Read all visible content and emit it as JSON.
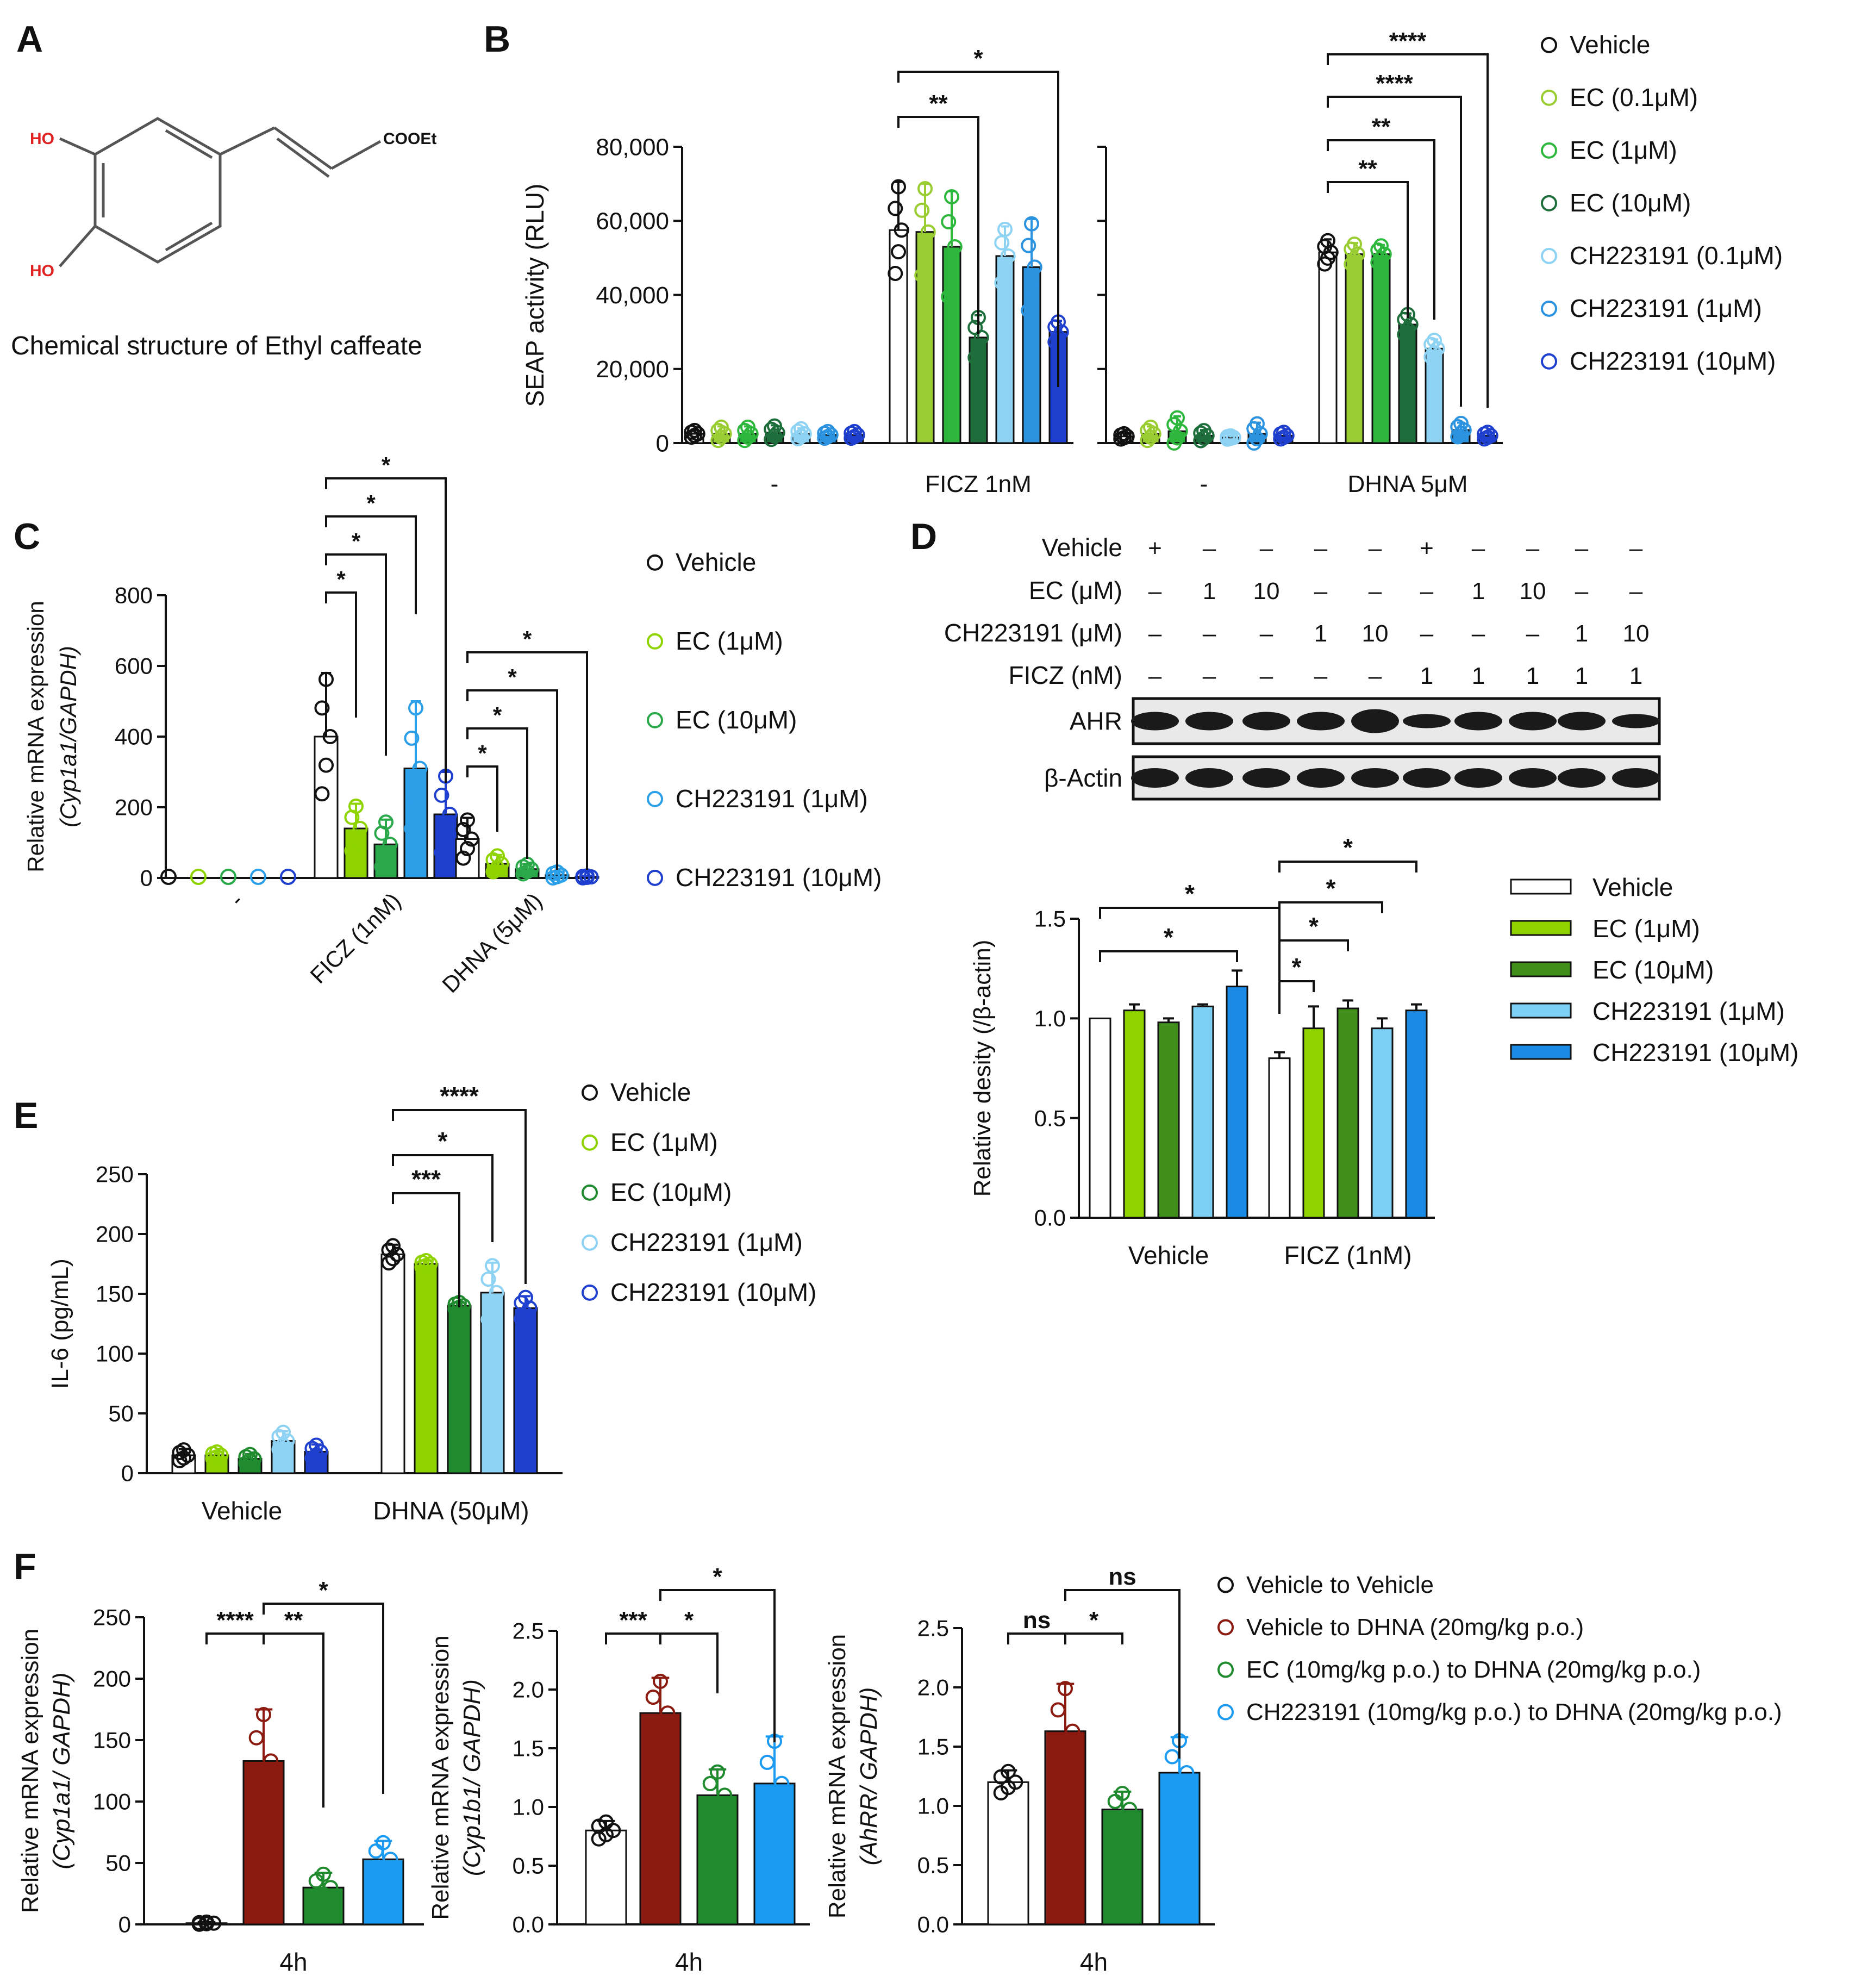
{
  "panels": {
    "A": {
      "letter": "A",
      "caption": "Chemical structure of Ethyl caffeate",
      "atom_labels": {
        "oh_top": "HO",
        "oh_bottom": "HO",
        "ester": "COOEt"
      }
    },
    "B": {
      "letter": "B"
    },
    "C": {
      "letter": "C"
    },
    "D": {
      "letter": "D",
      "blot": {
        "row_labels": [
          "Vehicle",
          "EC (μM)",
          "CH223191 (μM)",
          "FICZ (nM)"
        ],
        "rows": [
          [
            "+",
            "–",
            "–",
            "–",
            "–",
            "+",
            "–",
            "–",
            "–",
            "–"
          ],
          [
            "–",
            "1",
            "10",
            "–",
            "–",
            "–",
            "1",
            "10",
            "–",
            "–"
          ],
          [
            "–",
            "–",
            "–",
            "1",
            "10",
            "–",
            "–",
            "–",
            "1",
            "10"
          ],
          [
            "–",
            "–",
            "–",
            "–",
            "–",
            "1",
            "1",
            "1",
            "1",
            "1"
          ]
        ],
        "bands": [
          "AHR",
          "β-Actin"
        ]
      }
    },
    "E": {
      "letter": "E"
    },
    "F": {
      "letter": "F"
    }
  },
  "chart_data": [
    {
      "id": "B",
      "type": "bar",
      "title": "",
      "xlabel": "",
      "ylabel": "SEAP activity (RLU)",
      "ylim": [
        0,
        80000
      ],
      "yticks": [
        0,
        20000,
        40000,
        60000,
        80000
      ],
      "ytick_labels": [
        "0",
        "20,000",
        "40,000",
        "60,000",
        "80,000"
      ],
      "subplots": [
        {
          "categories": [
            "-",
            "FICZ 1nM"
          ]
        },
        {
          "categories": [
            "-",
            "DHNA 5μM"
          ]
        }
      ],
      "series_names": [
        "Vehicle",
        "EC (0.1μM)",
        "EC (1μM)",
        "EC (10μM)",
        "CH223191 (0.1μM)",
        "CH223191 (1μM)",
        "CH223191 (10μM)"
      ],
      "series_colors": [
        "#ffffff",
        "#9acd32",
        "#2db83d",
        "#1e6e3c",
        "#8fd3f4",
        "#2b93e0",
        "#1f3fcf"
      ],
      "values_left": [
        [
          2500,
          2500,
          2500,
          2800,
          2500,
          2200,
          2200
        ],
        [
          57500,
          57000,
          53000,
          28500,
          50500,
          47500,
          30000
        ]
      ],
      "errors_left": [
        [
          1000,
          2000,
          2000,
          2000,
          1500,
          1000,
          1000
        ],
        [
          13000,
          13000,
          15000,
          6000,
          8000,
          13000,
          3000
        ]
      ],
      "values_right": [
        [
          1800,
          2500,
          3200,
          2000,
          1500,
          2500,
          2000
        ],
        [
          51500,
          51000,
          51000,
          32000,
          25500,
          3500,
          2000
        ]
      ],
      "errors_right": [
        [
          800,
          2000,
          4000,
          1500,
          500,
          3000,
          1000
        ],
        [
          3500,
          3000,
          2500,
          3000,
          2500,
          2000,
          1000
        ]
      ],
      "legend": [
        "Vehicle",
        "EC (0.1μM)",
        "EC (1μM)",
        "EC (10μM)",
        "CH223191 (0.1μM)",
        "CH223191 (1μM)",
        "CH223191 (10μM)"
      ],
      "significance": [
        {
          "group": "FICZ 1nM",
          "from": "Vehicle",
          "to": "EC (10μM)",
          "label": "**"
        },
        {
          "group": "FICZ 1nM",
          "from": "Vehicle",
          "to": "CH223191 (10μM)",
          "label": "*"
        },
        {
          "group": "DHNA 5μM",
          "from": "Vehicle",
          "to": "EC (10μM)",
          "label": "**"
        },
        {
          "group": "DHNA 5μM",
          "from": "Vehicle",
          "to": "CH223191 (0.1μM)",
          "label": "**"
        },
        {
          "group": "DHNA 5μM",
          "from": "Vehicle",
          "to": "CH223191 (1μM)",
          "label": "****"
        },
        {
          "group": "DHNA 5μM",
          "from": "Vehicle",
          "to": "CH223191 (10μM)",
          "label": "****"
        }
      ]
    },
    {
      "id": "C",
      "type": "bar",
      "ylabel_line1": "Relative mRNA expression",
      "ylabel_line2": "(Cyp1a1/GAPDH)",
      "ylim": [
        0,
        800
      ],
      "yticks": [
        0,
        200,
        400,
        600,
        800
      ],
      "categories": [
        "-",
        "FICZ (1nM)",
        "DHNA (5μM)"
      ],
      "series_names": [
        "Vehicle",
        "EC (1μM)",
        "EC (10μM)",
        "CH223191 (1μM)",
        "CH223191 (10μM)"
      ],
      "series_colors": [
        "#ffffff",
        "#8fd400",
        "#2aa84a",
        "#2b9fe8",
        "#1f3fcf"
      ],
      "values": [
        [
          2,
          2,
          2,
          2,
          2
        ],
        [
          400,
          140,
          95,
          310,
          180
        ],
        [
          110,
          40,
          25,
          8,
          3
        ]
      ],
      "errors": [
        [
          1,
          1,
          1,
          1,
          1
        ],
        [
          180,
          70,
          70,
          190,
          120
        ],
        [
          60,
          25,
          15,
          10,
          3
        ]
      ],
      "legend": [
        "Vehicle",
        "EC (1μM)",
        "EC (10μM)",
        "CH223191 (1μM)",
        "CH223191 (10μM)"
      ],
      "significance": [
        {
          "group": "FICZ (1nM)",
          "from": "Vehicle",
          "to": "EC (1μM)",
          "label": "*"
        },
        {
          "group": "FICZ (1nM)",
          "from": "Vehicle",
          "to": "EC (10μM)",
          "label": "*"
        },
        {
          "group": "FICZ (1nM)",
          "from": "Vehicle",
          "to": "CH223191 (1μM)",
          "label": "*"
        },
        {
          "group": "FICZ (1nM)",
          "from": "Vehicle",
          "to": "CH223191 (10μM)",
          "label": "*"
        },
        {
          "group": "DHNA (5μM)",
          "from": "Vehicle",
          "to": "EC (1μM)",
          "label": "*"
        },
        {
          "group": "DHNA (5μM)",
          "from": "Vehicle",
          "to": "EC (10μM)",
          "label": "*"
        },
        {
          "group": "DHNA (5μM)",
          "from": "Vehicle",
          "to": "CH223191 (1μM)",
          "label": "*"
        },
        {
          "group": "DHNA (5μM)",
          "from": "Vehicle",
          "to": "CH223191 (10μM)",
          "label": "*"
        }
      ]
    },
    {
      "id": "D",
      "type": "bar",
      "ylabel": "Relative desity (/β-actin)",
      "ylim": [
        0,
        1.5
      ],
      "yticks": [
        0,
        0.5,
        1.0,
        1.5
      ],
      "ytick_labels": [
        "0.0",
        "0.5",
        "1.0",
        "1.5"
      ],
      "categories": [
        "Vehicle",
        "FICZ (1nM)"
      ],
      "series_names": [
        "Vehicle",
        "EC (1μM)",
        "EC (10μM)",
        "CH223191 (1μM)",
        "CH223191 (10μM)"
      ],
      "series_colors": [
        "#ffffff",
        "#8fd400",
        "#3f8f1a",
        "#7cd0f4",
        "#1a8ae6"
      ],
      "values": [
        [
          1.0,
          1.04,
          0.98,
          1.06,
          1.16
        ],
        [
          0.8,
          0.95,
          1.05,
          0.95,
          1.04
        ]
      ],
      "errors": [
        [
          0,
          0.03,
          0.02,
          0.01,
          0.08
        ],
        [
          0.03,
          0.11,
          0.04,
          0.05,
          0.03
        ]
      ],
      "legend": [
        "Vehicle",
        "EC (1μM)",
        "EC (10μM)",
        "CH223191 (1μM)",
        "CH223191 (10μM)"
      ],
      "significance": [
        {
          "from": "Vehicle/Vehicle",
          "to": "Vehicle/CH223191 (10μM)",
          "label": "*"
        },
        {
          "from": "Vehicle/Vehicle",
          "to": "FICZ/Vehicle",
          "label": "*"
        },
        {
          "from": "FICZ/Vehicle",
          "to": "FICZ/EC (1μM)",
          "label": "*"
        },
        {
          "from": "FICZ/Vehicle",
          "to": "FICZ/EC (10μM)",
          "label": "*"
        },
        {
          "from": "FICZ/Vehicle",
          "to": "FICZ/CH223191 (1μM)",
          "label": "*"
        },
        {
          "from": "FICZ/Vehicle",
          "to": "FICZ/CH223191 (10μM)",
          "label": "*"
        }
      ]
    },
    {
      "id": "E",
      "type": "bar",
      "ylabel": "IL-6 (pg/mL)",
      "ylim": [
        0,
        250
      ],
      "yticks": [
        0,
        50,
        100,
        150,
        200,
        250
      ],
      "categories": [
        "Vehicle",
        "DHNA (50μM)"
      ],
      "series_names": [
        "Vehicle",
        "EC (1μM)",
        "EC (10μM)",
        "CH223191 (1μM)",
        "CH223191 (10μM)"
      ],
      "series_colors": [
        "#ffffff",
        "#8fd400",
        "#1f8a2e",
        "#8fd3f4",
        "#1f3fcf"
      ],
      "values": [
        [
          15,
          15,
          12,
          27,
          18
        ],
        [
          183,
          175,
          140,
          151,
          138
        ]
      ],
      "errors": [
        [
          5,
          3,
          4,
          8,
          6
        ],
        [
          8,
          3,
          3,
          25,
          10
        ]
      ],
      "legend": [
        "Vehicle",
        "EC (1μM)",
        "EC (10μM)",
        "CH223191 (1μM)",
        "CH223191 (10μM)"
      ],
      "significance": [
        {
          "from": "Vehicle",
          "to": "EC (10μM)",
          "label": "***"
        },
        {
          "from": "Vehicle",
          "to": "CH223191 (1μM)",
          "label": "*"
        },
        {
          "from": "Vehicle",
          "to": "CH223191 (10μM)",
          "label": "****"
        }
      ]
    },
    {
      "id": "F1",
      "type": "bar",
      "ylabel_line1": "Relative mRNA expression",
      "ylabel_line2": "(Cyp1a1/ GAPDH)",
      "xlabel": "4h",
      "ylim": [
        0,
        250
      ],
      "yticks": [
        0,
        50,
        100,
        150,
        200,
        250
      ],
      "series_names": [
        "Vehicle to Vehicle",
        "Vehicle to DHNA (20mg/kg p.o.)",
        "EC (10mg/kg p.o.) to DHNA (20mg/kg p.o.)",
        "CH223191 (10mg/kg p.o.) to DHNA (20mg/kg p.o.)"
      ],
      "series_colors": [
        "#ffffff",
        "#8b1a10",
        "#1f8a2e",
        "#1a9af0"
      ],
      "values": [
        1,
        133,
        30,
        53
      ],
      "errors": [
        1,
        42,
        12,
        15
      ],
      "significance": [
        {
          "from": 0,
          "to": 1,
          "label": "****"
        },
        {
          "from": 1,
          "to": 2,
          "label": "**"
        },
        {
          "from": 1,
          "to": 3,
          "label": "*"
        }
      ]
    },
    {
      "id": "F2",
      "type": "bar",
      "ylabel_line1": "Relative mRNA expression",
      "ylabel_line2": "(Cyp1b1/ GAPDH)",
      "xlabel": "4h",
      "ylim": [
        0,
        2.5
      ],
      "yticks": [
        0,
        0.5,
        1.0,
        1.5,
        2.0,
        2.5
      ],
      "ytick_labels": [
        "0.0",
        "0.5",
        "1.0",
        "1.5",
        "2.0",
        "2.5"
      ],
      "series_names": [
        "Vehicle to Vehicle",
        "Vehicle to DHNA (20mg/kg p.o.)",
        "EC (10mg/kg p.o.) to DHNA (20mg/kg p.o.)",
        "CH223191 (10mg/kg p.o.) to DHNA (20mg/kg p.o.)"
      ],
      "series_colors": [
        "#ffffff",
        "#8b1a10",
        "#1f8a2e",
        "#1a9af0"
      ],
      "values": [
        0.8,
        1.8,
        1.1,
        1.2
      ],
      "errors": [
        0.08,
        0.3,
        0.22,
        0.4
      ],
      "significance": [
        {
          "from": 0,
          "to": 1,
          "label": "***"
        },
        {
          "from": 1,
          "to": 2,
          "label": "*"
        },
        {
          "from": 1,
          "to": 3,
          "label": "*"
        }
      ]
    },
    {
      "id": "F3",
      "type": "bar",
      "ylabel_line1": "Relative mRNA expression",
      "ylabel_line2": "(AhRR/ GAPDH)",
      "xlabel": "4h",
      "ylim": [
        0,
        2.5
      ],
      "yticks": [
        0,
        0.5,
        1.0,
        1.5,
        2.0,
        2.5
      ],
      "ytick_labels": [
        "0.0",
        "0.5",
        "1.0",
        "1.5",
        "2.0",
        "2.5"
      ],
      "series_names": [
        "Vehicle to Vehicle",
        "Vehicle to DHNA (20mg/kg p.o.)",
        "EC (10mg/kg p.o.) to DHNA (20mg/kg p.o.)",
        "CH223191 (10mg/kg p.o.) to DHNA (20mg/kg p.o.)"
      ],
      "series_colors": [
        "#ffffff",
        "#8b1a10",
        "#1f8a2e",
        "#1a9af0"
      ],
      "values": [
        1.2,
        1.63,
        0.97,
        1.28
      ],
      "errors": [
        0.1,
        0.4,
        0.15,
        0.3
      ],
      "legend": [
        "Vehicle to Vehicle",
        "Vehicle to DHNA (20mg/kg p.o.)",
        "EC (10mg/kg p.o.) to DHNA (20mg/kg p.o.)",
        "CH223191 (10mg/kg p.o.) to DHNA (20mg/kg p.o.)"
      ],
      "significance": [
        {
          "from": 0,
          "to": 1,
          "label": "ns"
        },
        {
          "from": 1,
          "to": 2,
          "label": "*"
        },
        {
          "from": 1,
          "to": 3,
          "label": "ns"
        }
      ]
    }
  ]
}
